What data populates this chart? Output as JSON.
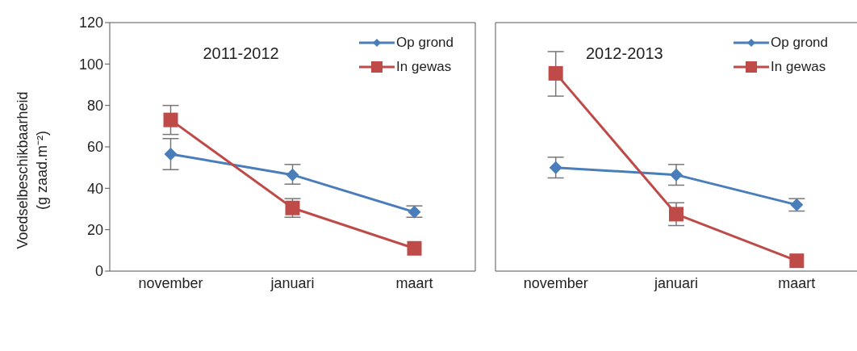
{
  "chart_data": [
    {
      "type": "line",
      "title": "2011-2012",
      "ylabel": "Voedselbeschikbaarheid\n(g zaad.m⁻²)",
      "categories": [
        "november",
        "januari",
        "maart"
      ],
      "ylim": [
        0,
        120
      ],
      "yticks": [
        0,
        20,
        40,
        60,
        80,
        100,
        120
      ],
      "legend": "top right",
      "grid": false,
      "series": [
        {
          "name": "Op grond",
          "color": "#4a7ebb",
          "marker": "diamond",
          "values": [
            56.5,
            46.5,
            28.5
          ],
          "errors": [
            [
              49,
              64
            ],
            [
              42,
              51.5
            ],
            [
              26,
              31.5
            ]
          ]
        },
        {
          "name": "In gewas",
          "color": "#be4b48",
          "marker": "square",
          "values": [
            73,
            30.5,
            11
          ],
          "errors": [
            [
              66,
              80
            ],
            [
              26,
              35
            ],
            null
          ]
        }
      ]
    },
    {
      "type": "line",
      "title": "2012-2013",
      "categories": [
        "november",
        "januari",
        "maart"
      ],
      "ylim": [
        0,
        120
      ],
      "yticks": [
        0,
        20,
        40,
        60,
        80,
        100,
        120
      ],
      "tick_labels": "x",
      "legend": "top right",
      "grid": false,
      "series": [
        {
          "name": "Op grond",
          "color": "#4a7ebb",
          "marker": "diamond",
          "values": [
            50,
            46.5,
            32
          ],
          "errors": [
            [
              45,
              55
            ],
            [
              41.5,
              51.5
            ],
            [
              29,
              35
            ]
          ]
        },
        {
          "name": "In gewas",
          "color": "#be4b48",
          "marker": "square",
          "values": [
            95.5,
            27.5,
            5
          ],
          "errors": [
            [
              84.5,
              106
            ],
            [
              22,
              33
            ],
            null
          ]
        }
      ]
    }
  ]
}
